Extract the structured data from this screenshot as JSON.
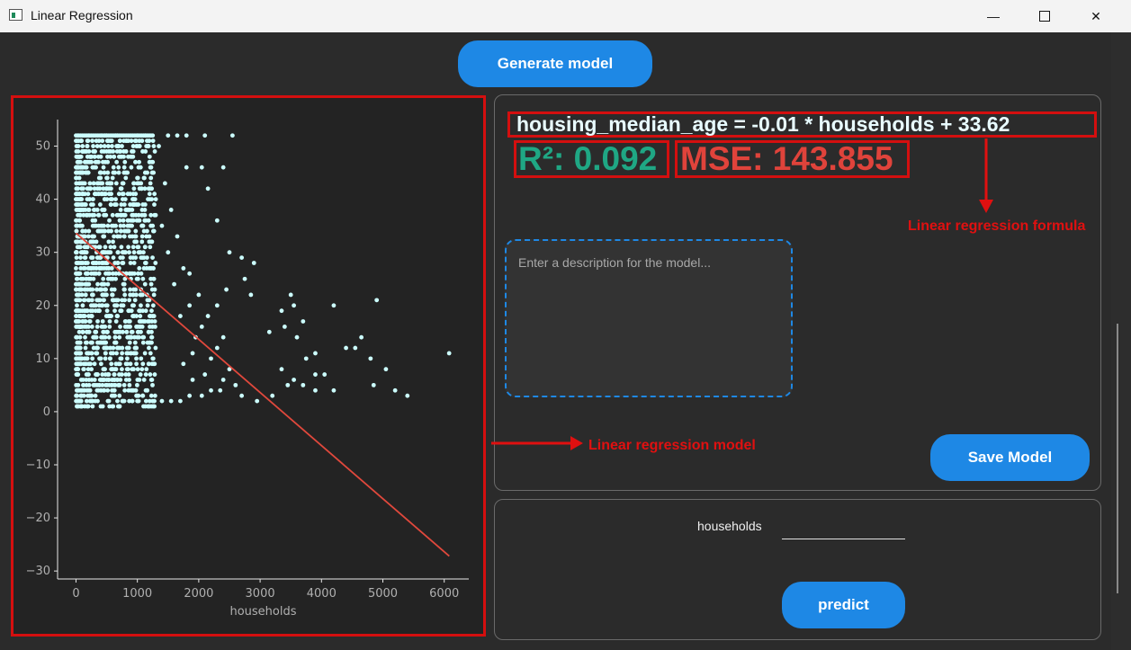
{
  "window": {
    "title": "Linear Regression",
    "minimize_glyph": "—",
    "close_glyph": "✕"
  },
  "toolbar": {
    "generate_label": "Generate model"
  },
  "model": {
    "formula": "housing_median_age = -0.01 * households + 33.62",
    "r2_text": "R²: 0.092",
    "mse_text": "MSE: 143.855",
    "description_placeholder": "Enter a description for the model...",
    "save_label": "Save Model"
  },
  "predict": {
    "feature_label": "households",
    "feature_value": "",
    "predict_label": "predict"
  },
  "annotations": {
    "model_label": "Linear regression model",
    "formula_label": "Linear regression formula"
  },
  "colors": {
    "accent": "#1e88e5",
    "annotation": "#e01010",
    "points": "#ccffff",
    "fit_line": "#e0483c",
    "r2": "#1fa784",
    "mse": "#e0433b"
  },
  "chart_data": {
    "type": "scatter",
    "xlabel": "households",
    "ylabel": "",
    "xlim": [
      -300,
      6400
    ],
    "ylim": [
      -31.5,
      55
    ],
    "xticks": [
      0,
      1000,
      2000,
      3000,
      4000,
      5000,
      6000
    ],
    "yticks": [
      -30,
      -20,
      -10,
      0,
      10,
      20,
      30,
      40,
      50
    ],
    "xtick_labels": [
      "0",
      "1000",
      "2000",
      "3000",
      "4000",
      "5000",
      "6000"
    ],
    "ytick_labels": [
      "−30",
      "−20",
      "−10",
      "0",
      "10",
      "20",
      "30",
      "40",
      "50"
    ],
    "grid": false,
    "regression_line": {
      "slope": -0.01,
      "intercept": 33.62,
      "x_range": [
        0,
        6082
      ]
    },
    "outlier_points": [
      {
        "x": 2100,
        "y": 52
      },
      {
        "x": 2550,
        "y": 52
      },
      {
        "x": 1800,
        "y": 52
      },
      {
        "x": 1800,
        "y": 46
      },
      {
        "x": 2050,
        "y": 46
      },
      {
        "x": 2400,
        "y": 46
      },
      {
        "x": 2150,
        "y": 42
      },
      {
        "x": 2300,
        "y": 36
      },
      {
        "x": 2500,
        "y": 30
      },
      {
        "x": 2700,
        "y": 29
      },
      {
        "x": 2900,
        "y": 28
      },
      {
        "x": 2750,
        "y": 25
      },
      {
        "x": 2450,
        "y": 23
      },
      {
        "x": 2850,
        "y": 22
      },
      {
        "x": 3500,
        "y": 22
      },
      {
        "x": 3550,
        "y": 20
      },
      {
        "x": 4200,
        "y": 20
      },
      {
        "x": 4900,
        "y": 21
      },
      {
        "x": 3350,
        "y": 19
      },
      {
        "x": 3700,
        "y": 17
      },
      {
        "x": 3400,
        "y": 16
      },
      {
        "x": 3150,
        "y": 15
      },
      {
        "x": 3600,
        "y": 14
      },
      {
        "x": 4650,
        "y": 14
      },
      {
        "x": 4400,
        "y": 12
      },
      {
        "x": 4550,
        "y": 12
      },
      {
        "x": 3900,
        "y": 11
      },
      {
        "x": 6080,
        "y": 11
      },
      {
        "x": 3750,
        "y": 10
      },
      {
        "x": 4800,
        "y": 10
      },
      {
        "x": 3350,
        "y": 8
      },
      {
        "x": 3900,
        "y": 7
      },
      {
        "x": 4050,
        "y": 7
      },
      {
        "x": 5050,
        "y": 8
      },
      {
        "x": 3550,
        "y": 6
      },
      {
        "x": 3700,
        "y": 5
      },
      {
        "x": 4850,
        "y": 5
      },
      {
        "x": 3450,
        "y": 5
      },
      {
        "x": 3900,
        "y": 4
      },
      {
        "x": 4200,
        "y": 4
      },
      {
        "x": 5200,
        "y": 4
      },
      {
        "x": 5400,
        "y": 3
      },
      {
        "x": 3200,
        "y": 3
      },
      {
        "x": 2950,
        "y": 2
      },
      {
        "x": 2700,
        "y": 3
      },
      {
        "x": 2600,
        "y": 5
      },
      {
        "x": 2400,
        "y": 6
      },
      {
        "x": 2500,
        "y": 8
      },
      {
        "x": 2200,
        "y": 10
      },
      {
        "x": 2300,
        "y": 12
      },
      {
        "x": 1950,
        "y": 14
      },
      {
        "x": 2050,
        "y": 16
      },
      {
        "x": 1700,
        "y": 18
      },
      {
        "x": 1850,
        "y": 20
      },
      {
        "x": 1600,
        "y": 24
      },
      {
        "x": 1750,
        "y": 27
      },
      {
        "x": 1500,
        "y": 30
      },
      {
        "x": 1650,
        "y": 33
      },
      {
        "x": 1400,
        "y": 35
      },
      {
        "x": 1550,
        "y": 38
      },
      {
        "x": 1300,
        "y": 40
      },
      {
        "x": 1450,
        "y": 43
      },
      {
        "x": 1200,
        "y": 48
      },
      {
        "x": 1350,
        "y": 50
      },
      {
        "x": 1500,
        "y": 52
      },
      {
        "x": 1650,
        "y": 52
      },
      {
        "x": 200,
        "y": 1
      },
      {
        "x": 270,
        "y": 1
      },
      {
        "x": 40,
        "y": 1
      },
      {
        "x": 1100,
        "y": 1
      },
      {
        "x": 1250,
        "y": 2
      },
      {
        "x": 1400,
        "y": 2
      },
      {
        "x": 1550,
        "y": 2
      },
      {
        "x": 1700,
        "y": 2
      },
      {
        "x": 1850,
        "y": 3
      },
      {
        "x": 2050,
        "y": 3
      },
      {
        "x": 2200,
        "y": 4
      },
      {
        "x": 2350,
        "y": 4
      },
      {
        "x": 1900,
        "y": 6
      },
      {
        "x": 2100,
        "y": 7
      },
      {
        "x": 1750,
        "y": 9
      },
      {
        "x": 1900,
        "y": 11
      },
      {
        "x": 2400,
        "y": 14
      },
      {
        "x": 2150,
        "y": 18
      },
      {
        "x": 2300,
        "y": 20
      },
      {
        "x": 2000,
        "y": 22
      },
      {
        "x": 1850,
        "y": 26
      }
    ],
    "dense_cluster": {
      "x_range": [
        0,
        1300
      ],
      "y_range": [
        1,
        52
      ],
      "note_density": "decreases with x"
    }
  }
}
